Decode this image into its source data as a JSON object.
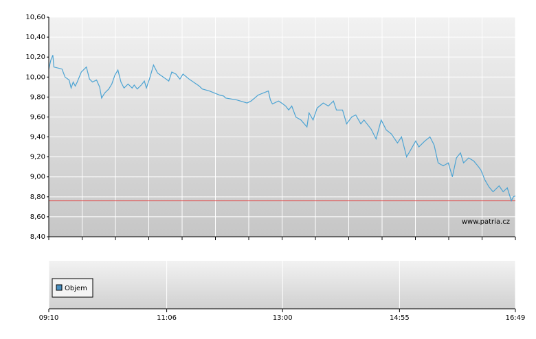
{
  "chart_data": {
    "type": "line",
    "x": [
      "09:10",
      "09:12",
      "09:14",
      "09:15",
      "09:23",
      "09:26",
      "09:30",
      "09:32",
      "09:34",
      "09:36",
      "09:38",
      "09:42",
      "09:47",
      "09:50",
      "09:53",
      "09:57",
      "10:00",
      "10:02",
      "10:05",
      "10:09",
      "10:12",
      "10:15",
      "10:18",
      "10:21",
      "10:24",
      "10:28",
      "10:32",
      "10:34",
      "10:37",
      "10:41",
      "10:44",
      "10:46",
      "10:49",
      "10:53",
      "10:57",
      "11:04",
      "11:08",
      "11:11",
      "11:15",
      "11:19",
      "11:22",
      "11:28",
      "11:38",
      "11:41",
      "11:48",
      "11:58",
      "12:02",
      "12:04",
      "12:15",
      "12:25",
      "12:29",
      "12:36",
      "12:46",
      "12:48",
      "12:50",
      "12:56",
      "12:59",
      "13:03",
      "13:06",
      "13:09",
      "13:13",
      "13:18",
      "13:24",
      "13:26",
      "13:30",
      "13:34",
      "13:40",
      "13:45",
      "13:50",
      "13:53",
      "13:59",
      "14:03",
      "14:08",
      "14:12",
      "14:17",
      "14:20",
      "14:27",
      "14:32",
      "14:37",
      "14:42",
      "14:47",
      "14:53",
      "14:57",
      "15:02",
      "15:06",
      "15:11",
      "15:14",
      "15:20",
      "15:25",
      "15:29",
      "15:33",
      "15:38",
      "15:43",
      "15:47",
      "15:51",
      "15:55",
      "15:58",
      "16:03",
      "16:08",
      "16:12",
      "16:15",
      "16:19",
      "16:23",
      "16:27",
      "16:33",
      "16:37",
      "16:41",
      "16:45",
      "16:47",
      "16:49"
    ],
    "series": [
      {
        "color": "#4ba3d3",
        "values": [
          10.08,
          10.17,
          10.22,
          10.1,
          10.08,
          10.0,
          9.97,
          9.89,
          9.95,
          9.91,
          9.95,
          10.05,
          10.1,
          9.98,
          9.95,
          9.97,
          9.9,
          9.79,
          9.84,
          9.88,
          9.93,
          10.02,
          10.07,
          9.95,
          9.89,
          9.93,
          9.89,
          9.92,
          9.88,
          9.92,
          9.96,
          9.89,
          9.98,
          10.12,
          10.04,
          9.99,
          9.96,
          10.05,
          10.03,
          9.98,
          10.03,
          9.98,
          9.91,
          9.88,
          9.86,
          9.82,
          9.81,
          9.79,
          9.77,
          9.74,
          9.76,
          9.82,
          9.86,
          9.77,
          9.73,
          9.76,
          9.74,
          9.71,
          9.67,
          9.71,
          9.6,
          9.57,
          9.5,
          9.64,
          9.57,
          9.69,
          9.74,
          9.71,
          9.76,
          9.67,
          9.67,
          9.53,
          9.6,
          9.62,
          9.53,
          9.57,
          9.48,
          9.38,
          9.57,
          9.47,
          9.43,
          9.34,
          9.4,
          9.2,
          9.27,
          9.36,
          9.3,
          9.36,
          9.4,
          9.32,
          9.14,
          9.11,
          9.14,
          9.0,
          9.19,
          9.24,
          9.14,
          9.19,
          9.16,
          9.11,
          9.07,
          8.97,
          8.9,
          8.85,
          8.91,
          8.85,
          8.89,
          8.76,
          8.8,
          8.81
        ]
      }
    ],
    "reference_line": {
      "value": 8.76,
      "color": "#e05050"
    },
    "ylim": [
      8.4,
      10.6
    ],
    "yticks": [
      {
        "value": 8.4,
        "label": "8,40"
      },
      {
        "value": 8.6,
        "label": "8,60"
      },
      {
        "value": 8.8,
        "label": "8,80"
      },
      {
        "value": 9.0,
        "label": "9,00"
      },
      {
        "value": 9.2,
        "label": "9,20"
      },
      {
        "value": 9.4,
        "label": "9,40"
      },
      {
        "value": 9.6,
        "label": "9,60"
      },
      {
        "value": 9.8,
        "label": "9,80"
      },
      {
        "value": 10.0,
        "label": "10,00"
      },
      {
        "value": 10.2,
        "label": "10,20"
      },
      {
        "value": 10.4,
        "label": "10,40"
      },
      {
        "value": 10.6,
        "label": "10,60"
      }
    ],
    "xlim": [
      "09:10",
      "16:49"
    ],
    "xticks": [
      "09:10",
      "11:06",
      "13:00",
      "14:55",
      "16:49"
    ],
    "watermark": "www.patria.cz",
    "volume_legend": {
      "name": "Objem",
      "color": "#4a90c0"
    },
    "grid": true
  }
}
